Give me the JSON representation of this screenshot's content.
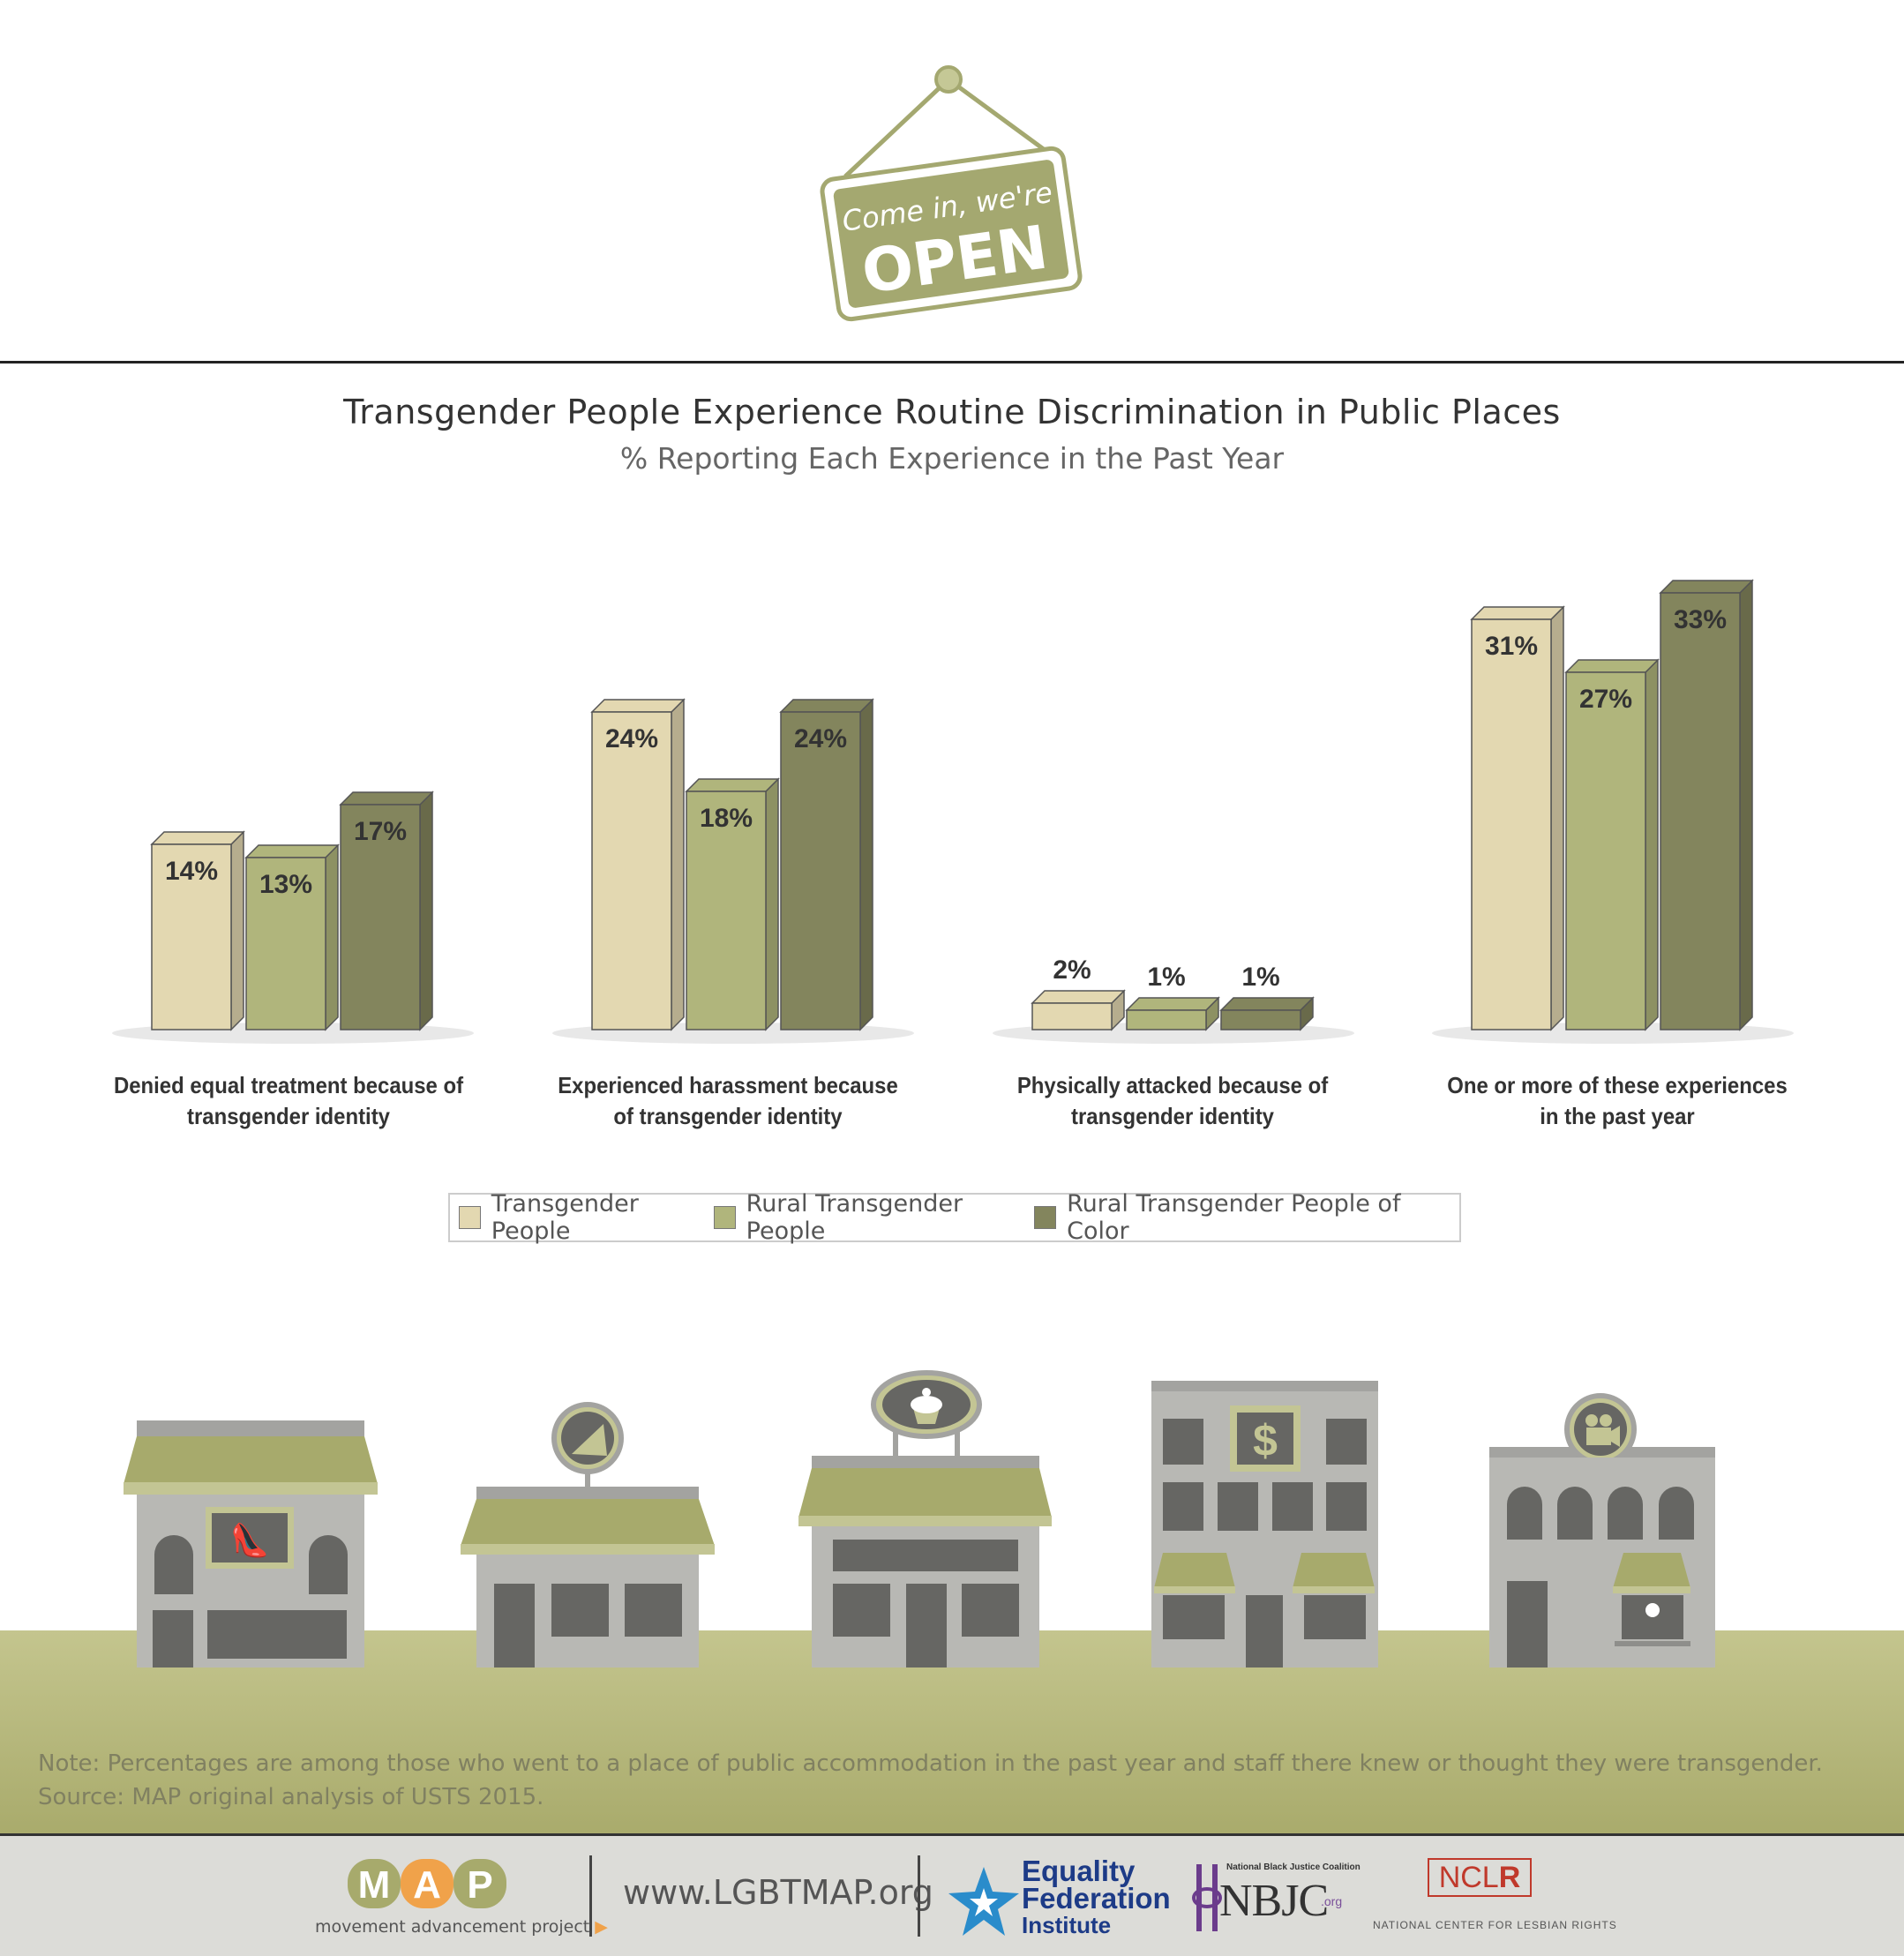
{
  "sign": {
    "line1": "Come in, we're",
    "line2": "OPEN"
  },
  "chart_data": {
    "type": "bar",
    "title": "Transgender People Experience Routine Discrimination in Public Places",
    "subtitle": "% Reporting Each Experience in the Past Year",
    "categories": [
      [
        "Denied equal treatment because of",
        "transgender identity"
      ],
      [
        "Experienced harassment because",
        "of transgender identity"
      ],
      [
        "Physically attacked because of",
        "transgender identity"
      ],
      [
        "One or more of these experiences",
        "in the past year"
      ]
    ],
    "series": [
      {
        "name": "Transgender People",
        "color": "#e3d8b1",
        "values": [
          14,
          24,
          2,
          31
        ],
        "labels": [
          "14%",
          "24%",
          "2%",
          "31%"
        ]
      },
      {
        "name": "Rural Transgender People",
        "color": "#b0b57c",
        "values": [
          13,
          18,
          1,
          27
        ],
        "labels": [
          "13%",
          "18%",
          "1%",
          "27%"
        ]
      },
      {
        "name": "Rural Transgender People of Color",
        "color": "#83855d",
        "values": [
          17,
          24,
          1,
          33
        ],
        "labels": [
          "17%",
          "24%",
          "1%",
          "33%"
        ]
      }
    ],
    "legend_position": "bottom",
    "grid": false
  },
  "stores": {
    "icons": [
      "shoe-icon",
      "pizza-icon",
      "cupcake-icon",
      "dollar-icon",
      "film-camera-icon"
    ],
    "dollar": "$"
  },
  "note": {
    "line1": "Note: Percentages are among those who went to a place of public accommodation in the past year and staff there knew or thought they were transgender.",
    "line2": "Source: MAP original analysis of USTS 2015."
  },
  "footer": {
    "map_logo": "MAP",
    "map_name": "movement advancement project",
    "url": "www.LGBTMAP.org",
    "efi": [
      "Equality",
      "Federation",
      "Institute"
    ],
    "nbjc_top": "National Black Justice Coalition",
    "nbjc": "NBJC",
    "nbjc_org": ".org",
    "nclr_a": "NCL",
    "nclr_b": "R",
    "nclr_sub": "NATIONAL CENTER FOR LESBIAN RIGHTS"
  }
}
